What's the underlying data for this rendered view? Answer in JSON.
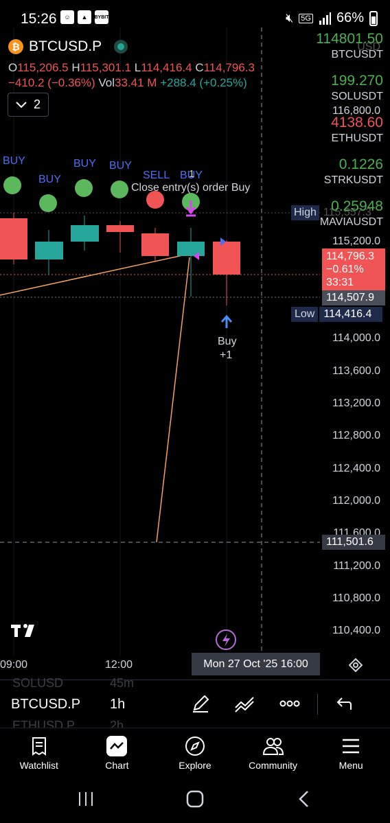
{
  "status_bar": {
    "time": "15:26",
    "icons": [
      "fingerprint-icon",
      "cloud-icon",
      "bybit-icon"
    ],
    "bybit_label": "BYBIT",
    "network": "5G",
    "battery": "66%"
  },
  "symbol": {
    "name": "BTCUSD.P",
    "logo": "₿"
  },
  "ohlc": {
    "o_label": "O",
    "o": "115,206.5",
    "h_label": "H",
    "h": "115,301.1",
    "l_label": "L",
    "l": "114,416.4",
    "c_label": "C",
    "c": "114,796.3",
    "change": "−410.2 (−0.36%)",
    "vol_label": "Vol",
    "vol": "33.41 M",
    "ext_change": "+288.4 (+0.25%)"
  },
  "indicator_toggle": {
    "count": "2"
  },
  "watchlist_overlay": [
    {
      "price": "114801.50",
      "symbol": "BTCUSDT",
      "color": "#4caf50"
    },
    {
      "price": "199.270",
      "symbol": "SOLUSDT",
      "color": "#4caf50"
    },
    {
      "price": "4138.60",
      "symbol": "ETHUSDT",
      "color": "#f05454"
    },
    {
      "price": "0.1226",
      "symbol": "STRKUSDT",
      "color": "#4caf50"
    },
    {
      "price": "0.25948",
      "symbol": "MAVIAUSDT",
      "color": "#4caf50"
    }
  ],
  "price_axis": {
    "currency": "USD",
    "labels": [
      "116,800.0",
      "115,200.0",
      "114,000.0",
      "113,600.0",
      "113,200.0",
      "112,800.0",
      "112,400.0",
      "112,000.0",
      "111,600.0",
      "111,200.0",
      "110,800.0",
      "110,400.0"
    ]
  },
  "price_tags": {
    "high_label": "High",
    "high_value": "115,557.3",
    "current_price": "114,796.3",
    "current_change": "−0.61%",
    "countdown": "33:31",
    "level": "114,507.9",
    "low_label": "Low",
    "low_value": "114,416.4",
    "crosshair_price": "111,501.6"
  },
  "signals": {
    "buy": "BUY",
    "sell": "SELL",
    "close_entry": "Close entry(s) order Buy",
    "close_entry_count": "1",
    "buy_arrow_label": "Buy",
    "buy_arrow_count": "+1"
  },
  "time_axis": {
    "labels": [
      "09:00",
      "12:00"
    ],
    "crosshair_time": "Mon 27 Oct '25   16:00"
  },
  "toolbar": {
    "ghost_top_symbol": "SOLUSD",
    "ghost_top_interval": "45m",
    "symbol": "BTCUSD.P",
    "interval": "1h",
    "ghost_bottom_symbol": "ETHUSD.P",
    "ghost_bottom_interval": "2h"
  },
  "nav": {
    "items": [
      {
        "label": "Watchlist",
        "icon": "watchlist-icon"
      },
      {
        "label": "Chart",
        "icon": "chart-icon"
      },
      {
        "label": "Explore",
        "icon": "compass-icon"
      },
      {
        "label": "Community",
        "icon": "community-icon"
      },
      {
        "label": "Menu",
        "icon": "menu-icon"
      }
    ]
  },
  "colors": {
    "up": "#26a69a",
    "down": "#f05454",
    "buy_text": "#4c6ef5",
    "signal_green": "#5cb85c",
    "signal_red": "#f05454",
    "marker_magenta": "#d946ef",
    "line_orange": "#f5a25d"
  }
}
